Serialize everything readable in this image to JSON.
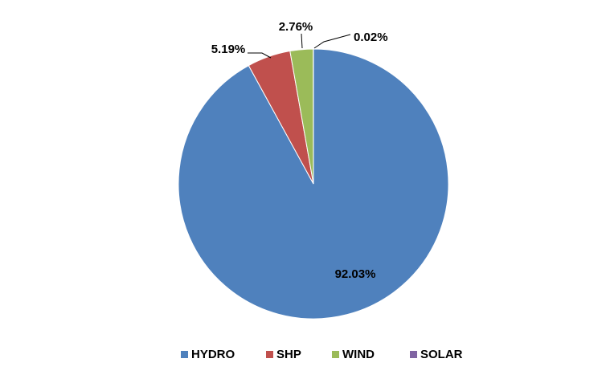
{
  "chart_data": {
    "type": "pie",
    "title": "",
    "categories": [
      "HYDRO",
      "SHP",
      "WIND",
      "SOLAR"
    ],
    "values": [
      92.03,
      5.19,
      2.76,
      0.02
    ],
    "labels": [
      "92.03%",
      "5.19%",
      "2.76%",
      "0.02%"
    ],
    "colors": [
      "#4F81BD",
      "#C0504D",
      "#9BBB59",
      "#8064A2"
    ],
    "legend_position": "bottom",
    "start_angle": "12 o'clock",
    "direction": "clockwise"
  }
}
